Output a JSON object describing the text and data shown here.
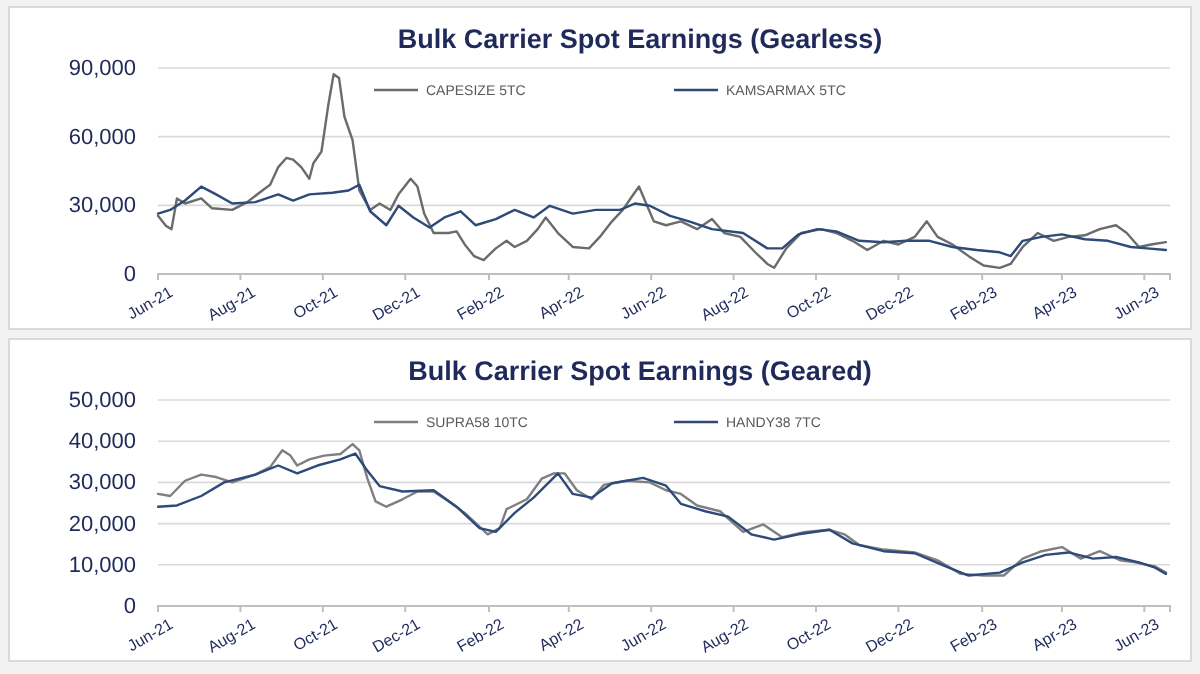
{
  "chart_data": [
    {
      "type": "line",
      "title": "Bulk Carrier Spot Earnings (Gearless)",
      "grid": "y",
      "legend": "top",
      "line_style": "solid",
      "marker": "none",
      "xlim": [
        "2021-06-01",
        "2023-06-20"
      ],
      "ylim": [
        0,
        90000
      ],
      "yticks": [
        {
          "value": 0,
          "label": "0"
        },
        {
          "value": 30000,
          "label": "30,000"
        },
        {
          "value": 60000,
          "label": "60,000"
        },
        {
          "value": 90000,
          "label": "90,000"
        }
      ],
      "xticks": [
        {
          "value": "2021-06-01",
          "label": "Jun-21"
        },
        {
          "value": "2021-08-01",
          "label": "Aug-21"
        },
        {
          "value": "2021-10-01",
          "label": "Oct-21"
        },
        {
          "value": "2021-12-01",
          "label": "Dec-21"
        },
        {
          "value": "2022-02-01",
          "label": "Feb-22"
        },
        {
          "value": "2022-04-01",
          "label": "Apr-22"
        },
        {
          "value": "2022-06-01",
          "label": "Jun-22"
        },
        {
          "value": "2022-08-01",
          "label": "Aug-22"
        },
        {
          "value": "2022-10-01",
          "label": "Oct-22"
        },
        {
          "value": "2022-12-01",
          "label": "Dec-22"
        },
        {
          "value": "2023-02-01",
          "label": "Feb-23"
        },
        {
          "value": "2023-04-01",
          "label": "Apr-23"
        },
        {
          "value": "2023-06-01",
          "label": "Jun-23"
        }
      ],
      "series": [
        {
          "name": "CAPESIZE 5TC",
          "color": "#6b6b6b",
          "x": [
            "2021-06-01",
            "2021-06-07",
            "2021-06-11",
            "2021-06-15",
            "2021-06-21",
            "2021-07-03",
            "2021-07-11",
            "2021-07-26",
            "2021-08-06",
            "2021-08-15",
            "2021-08-23",
            "2021-08-29",
            "2021-09-04",
            "2021-09-09",
            "2021-09-15",
            "2021-09-21",
            "2021-09-24",
            "2021-09-30",
            "2021-10-05",
            "2021-10-09",
            "2021-10-13",
            "2021-10-17",
            "2021-10-23",
            "2021-10-28",
            "2021-11-05",
            "2021-11-12",
            "2021-11-20",
            "2021-11-26",
            "2021-12-05",
            "2021-12-10",
            "2021-12-15",
            "2021-12-22",
            "2022-01-02",
            "2022-01-08",
            "2022-01-14",
            "2022-01-21",
            "2022-01-28",
            "2022-02-06",
            "2022-02-14",
            "2022-02-20",
            "2022-03-01",
            "2022-03-09",
            "2022-03-15",
            "2022-03-24",
            "2022-04-04",
            "2022-04-16",
            "2022-04-24",
            "2022-05-03",
            "2022-05-11",
            "2022-05-17",
            "2022-05-23",
            "2022-05-29",
            "2022-06-03",
            "2022-06-12",
            "2022-06-23",
            "2022-07-05",
            "2022-07-16",
            "2022-07-25",
            "2022-08-06",
            "2022-08-17",
            "2022-08-26",
            "2022-08-31",
            "2022-09-09",
            "2022-09-20",
            "2022-10-05",
            "2022-10-16",
            "2022-10-28",
            "2022-11-08",
            "2022-11-20",
            "2022-12-01",
            "2022-12-13",
            "2022-12-22",
            "2022-12-30",
            "2023-01-10",
            "2023-01-22",
            "2023-02-02",
            "2023-02-14",
            "2023-02-22",
            "2023-03-03",
            "2023-03-14",
            "2023-03-26",
            "2023-04-06",
            "2023-04-18",
            "2023-04-29",
            "2023-05-11",
            "2023-05-19",
            "2023-05-28",
            "2023-06-06",
            "2023-06-17"
          ],
          "values": [
            25400,
            21000,
            19600,
            33000,
            30800,
            33000,
            28700,
            28000,
            31400,
            35500,
            39000,
            46700,
            50700,
            50000,
            46700,
            41600,
            48400,
            53500,
            73700,
            87300,
            85600,
            68700,
            58500,
            36500,
            28000,
            30800,
            28000,
            34800,
            41600,
            38200,
            26400,
            17900,
            17900,
            18600,
            12900,
            7800,
            6100,
            11200,
            14500,
            11800,
            14500,
            19600,
            24700,
            17900,
            11800,
            11200,
            16200,
            23000,
            28000,
            33200,
            38200,
            29800,
            23000,
            21300,
            23000,
            19600,
            24000,
            17900,
            16200,
            9500,
            4400,
            2700,
            11200,
            17900,
            19600,
            17900,
            14500,
            10500,
            14500,
            12900,
            16200,
            23000,
            16200,
            12900,
            7800,
            3700,
            2700,
            4400,
            11800,
            17900,
            14500,
            16200,
            16900,
            19600,
            21300,
            17900,
            11800,
            12900,
            13900
          ]
        },
        {
          "name": "KAMSARMAX 5TC",
          "color": "#2e4a78",
          "x": [
            "2021-06-01",
            "2021-06-10",
            "2021-06-21",
            "2021-07-03",
            "2021-07-14",
            "2021-07-26",
            "2021-08-12",
            "2021-08-29",
            "2021-09-09",
            "2021-09-21",
            "2021-10-08",
            "2021-10-20",
            "2021-10-28",
            "2021-11-05",
            "2021-11-17",
            "2021-11-26",
            "2021-12-07",
            "2021-12-19",
            "2021-12-30",
            "2022-01-11",
            "2022-01-22",
            "2022-02-06",
            "2022-02-20",
            "2022-03-06",
            "2022-03-18",
            "2022-04-04",
            "2022-04-21",
            "2022-05-09",
            "2022-05-20",
            "2022-05-31",
            "2022-06-15",
            "2022-06-29",
            "2022-07-16",
            "2022-08-08",
            "2022-08-26",
            "2022-09-06",
            "2022-09-18",
            "2022-10-02",
            "2022-10-16",
            "2022-11-02",
            "2022-11-20",
            "2022-12-07",
            "2022-12-24",
            "2023-01-10",
            "2023-01-28",
            "2023-02-14",
            "2023-02-22",
            "2023-03-03",
            "2023-03-17",
            "2023-04-01",
            "2023-04-18",
            "2023-05-05",
            "2023-05-22",
            "2023-06-03",
            "2023-06-17"
          ],
          "values": [
            26400,
            28000,
            32100,
            38200,
            34800,
            30800,
            31400,
            34800,
            32100,
            34800,
            35500,
            36500,
            39000,
            27400,
            21300,
            29800,
            24700,
            20300,
            24700,
            27400,
            21300,
            24000,
            28000,
            24700,
            29800,
            26400,
            28000,
            28000,
            30800,
            29800,
            25400,
            23000,
            19600,
            17900,
            11200,
            11200,
            17300,
            19600,
            18600,
            14500,
            13900,
            14500,
            14500,
            11800,
            10500,
            9500,
            7800,
            14500,
            16200,
            17300,
            15200,
            14500,
            11800,
            11200,
            10500
          ]
        }
      ]
    },
    {
      "type": "line",
      "title": "Bulk Carrier Spot Earnings (Geared)",
      "grid": "y",
      "legend": "top",
      "line_style": "solid",
      "marker": "none",
      "xlim": [
        "2021-06-01",
        "2023-06-20"
      ],
      "ylim": [
        0,
        50000
      ],
      "yticks": [
        {
          "value": 0,
          "label": "0"
        },
        {
          "value": 10000,
          "label": "10,000"
        },
        {
          "value": 20000,
          "label": "20,000"
        },
        {
          "value": 30000,
          "label": "30,000"
        },
        {
          "value": 40000,
          "label": "40,000"
        },
        {
          "value": 50000,
          "label": "50,000"
        }
      ],
      "xticks": [
        {
          "value": "2021-06-01",
          "label": "Jun-21"
        },
        {
          "value": "2021-08-01",
          "label": "Aug-21"
        },
        {
          "value": "2021-10-01",
          "label": "Oct-21"
        },
        {
          "value": "2021-12-01",
          "label": "Dec-21"
        },
        {
          "value": "2022-02-01",
          "label": "Feb-22"
        },
        {
          "value": "2022-04-01",
          "label": "Apr-22"
        },
        {
          "value": "2022-06-01",
          "label": "Jun-22"
        },
        {
          "value": "2022-08-01",
          "label": "Aug-22"
        },
        {
          "value": "2022-10-01",
          "label": "Oct-22"
        },
        {
          "value": "2022-12-01",
          "label": "Dec-22"
        },
        {
          "value": "2023-02-01",
          "label": "Feb-23"
        },
        {
          "value": "2023-04-01",
          "label": "Apr-23"
        },
        {
          "value": "2023-06-01",
          "label": "Jun-23"
        }
      ],
      "series": [
        {
          "name": "SUPRA58 10TC",
          "color": "#7f7f7f",
          "x": [
            "2021-06-01",
            "2021-06-10",
            "2021-06-21",
            "2021-07-03",
            "2021-07-14",
            "2021-07-26",
            "2021-08-12",
            "2021-08-23",
            "2021-09-01",
            "2021-09-07",
            "2021-09-12",
            "2021-09-21",
            "2021-10-02",
            "2021-10-14",
            "2021-10-23",
            "2021-10-28",
            "2021-11-03",
            "2021-11-09",
            "2021-11-17",
            "2021-11-29",
            "2021-12-10",
            "2021-12-22",
            "2022-01-02",
            "2022-01-14",
            "2022-01-31",
            "2022-02-09",
            "2022-02-14",
            "2022-03-01",
            "2022-03-12",
            "2022-03-21",
            "2022-03-29",
            "2022-04-07",
            "2022-04-18",
            "2022-04-27",
            "2022-05-14",
            "2022-05-31",
            "2022-06-12",
            "2022-06-23",
            "2022-07-05",
            "2022-07-22",
            "2022-08-08",
            "2022-08-23",
            "2022-09-06",
            "2022-09-23",
            "2022-10-11",
            "2022-10-22",
            "2022-11-02",
            "2022-11-20",
            "2022-12-13",
            "2022-12-30",
            "2023-01-16",
            "2023-02-02",
            "2023-02-17",
            "2023-03-03",
            "2023-03-17",
            "2023-04-01",
            "2023-04-15",
            "2023-04-29",
            "2023-05-14",
            "2023-05-25",
            "2023-06-09",
            "2023-06-17"
          ],
          "values": [
            27200,
            26700,
            30400,
            31900,
            31300,
            30000,
            31900,
            33700,
            37800,
            36500,
            34100,
            35600,
            36500,
            36900,
            39300,
            37800,
            30900,
            25400,
            24100,
            25900,
            27800,
            27800,
            25400,
            22600,
            17400,
            18900,
            23500,
            25900,
            30900,
            32200,
            32200,
            28100,
            25900,
            29400,
            30400,
            30000,
            28100,
            27200,
            24400,
            23000,
            18000,
            19800,
            16700,
            18000,
            18500,
            17400,
            14800,
            13700,
            13000,
            11100,
            7800,
            7400,
            7400,
            11500,
            13300,
            14300,
            11500,
            13300,
            11100,
            10600,
            9600,
            8100
          ]
        },
        {
          "name": "HANDY38 7TC",
          "color": "#2f4a7a",
          "x": [
            "2021-06-01",
            "2021-06-15",
            "2021-07-03",
            "2021-07-20",
            "2021-08-12",
            "2021-08-29",
            "2021-09-12",
            "2021-09-27",
            "2021-10-14",
            "2021-10-25",
            "2021-11-03",
            "2021-11-12",
            "2021-11-29",
            "2021-12-22",
            "2022-01-08",
            "2022-01-25",
            "2022-02-06",
            "2022-02-20",
            "2022-03-06",
            "2022-03-24",
            "2022-04-04",
            "2022-04-18",
            "2022-05-03",
            "2022-05-26",
            "2022-06-12",
            "2022-06-23",
            "2022-07-11",
            "2022-07-28",
            "2022-08-14",
            "2022-08-31",
            "2022-09-18",
            "2022-10-11",
            "2022-10-28",
            "2022-11-20",
            "2022-12-13",
            "2023-01-05",
            "2023-01-22",
            "2023-02-14",
            "2023-03-03",
            "2023-03-20",
            "2023-04-06",
            "2023-04-24",
            "2023-05-11",
            "2023-05-28",
            "2023-06-09",
            "2023-06-17"
          ],
          "values": [
            24100,
            24400,
            26700,
            30000,
            31900,
            34100,
            32200,
            34100,
            35600,
            37000,
            32800,
            29100,
            27800,
            28100,
            24100,
            18900,
            18000,
            22600,
            26300,
            32200,
            27200,
            26300,
            29800,
            31100,
            29200,
            24800,
            23000,
            21700,
            17400,
            16100,
            17400,
            18500,
            15200,
            13300,
            12800,
            9600,
            7400,
            8100,
            10600,
            12400,
            13000,
            11500,
            11900,
            10600,
            9300,
            7800
          ]
        }
      ]
    }
  ]
}
